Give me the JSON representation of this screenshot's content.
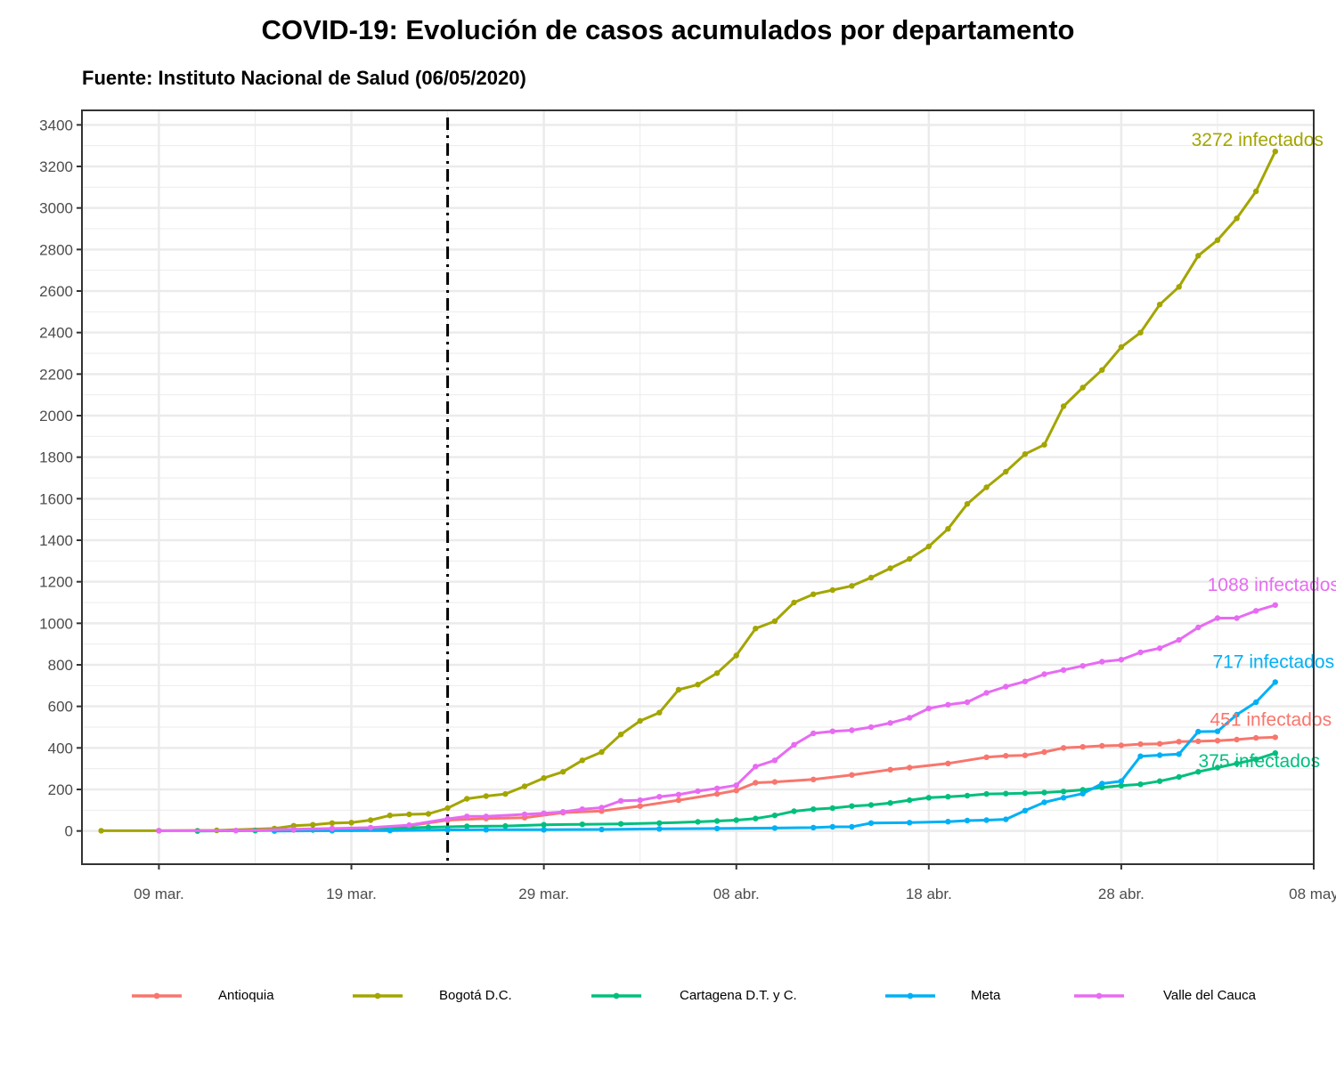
{
  "chart_data": {
    "type": "line",
    "title": "COVID-19: Evolución de casos acumulados por departamento",
    "subtitle": "Fuente: Instituto Nacional de Salud (06/05/2020)",
    "xlabel": "",
    "ylabel": "",
    "x_ticks": [
      {
        "date": "2020-03-09",
        "label": "09 mar."
      },
      {
        "date": "2020-03-19",
        "label": "19 mar."
      },
      {
        "date": "2020-03-29",
        "label": "29 mar."
      },
      {
        "date": "2020-04-08",
        "label": "08 abr."
      },
      {
        "date": "2020-04-18",
        "label": "18 abr."
      },
      {
        "date": "2020-04-28",
        "label": "28 abr."
      },
      {
        "date": "2020-05-08",
        "label": "08 may"
      }
    ],
    "xlim": [
      "2020-03-05",
      "2020-05-08"
    ],
    "ylim": [
      -160,
      3470
    ],
    "y_ticks": [
      0,
      200,
      400,
      600,
      800,
      1000,
      1200,
      1400,
      1600,
      1800,
      2000,
      2200,
      2400,
      2600,
      2800,
      3000,
      3200,
      3400
    ],
    "grid": true,
    "vline": {
      "date": "2020-03-24",
      "style": "dash-dot"
    },
    "legend_position": "bottom",
    "series": [
      {
        "name": "Antioquia",
        "color": "#F8766D",
        "end_label": "451 infectados",
        "points": [
          [
            "2020-03-11",
            1
          ],
          [
            "2020-03-14",
            3
          ],
          [
            "2020-03-16",
            5
          ],
          [
            "2020-03-18",
            8
          ],
          [
            "2020-03-20",
            14
          ],
          [
            "2020-03-22",
            25
          ],
          [
            "2020-03-24",
            52
          ],
          [
            "2020-03-26",
            60
          ],
          [
            "2020-03-28",
            64
          ],
          [
            "2020-03-30",
            88
          ],
          [
            "2020-04-01",
            96
          ],
          [
            "2020-04-03",
            120
          ],
          [
            "2020-04-05",
            148
          ],
          [
            "2020-04-07",
            178
          ],
          [
            "2020-04-08",
            195
          ],
          [
            "2020-04-09",
            232
          ],
          [
            "2020-04-10",
            236
          ],
          [
            "2020-04-12",
            248
          ],
          [
            "2020-04-14",
            270
          ],
          [
            "2020-04-16",
            295
          ],
          [
            "2020-04-17",
            305
          ],
          [
            "2020-04-19",
            325
          ],
          [
            "2020-04-21",
            355
          ],
          [
            "2020-04-22",
            362
          ],
          [
            "2020-04-23",
            364
          ],
          [
            "2020-04-24",
            380
          ],
          [
            "2020-04-25",
            400
          ],
          [
            "2020-04-26",
            405
          ],
          [
            "2020-04-27",
            410
          ],
          [
            "2020-04-28",
            412
          ],
          [
            "2020-04-29",
            418
          ],
          [
            "2020-04-30",
            420
          ],
          [
            "2020-05-01",
            430
          ],
          [
            "2020-05-02",
            432
          ],
          [
            "2020-05-03",
            435
          ],
          [
            "2020-05-04",
            440
          ],
          [
            "2020-05-05",
            448
          ],
          [
            "2020-05-06",
            451
          ]
        ]
      },
      {
        "name": "Bogotá D.C.",
        "color": "#A3A500",
        "end_label": "3272 infectados",
        "points": [
          [
            "2020-03-06",
            1
          ],
          [
            "2020-03-09",
            1
          ],
          [
            "2020-03-12",
            3
          ],
          [
            "2020-03-15",
            12
          ],
          [
            "2020-03-16",
            25
          ],
          [
            "2020-03-17",
            30
          ],
          [
            "2020-03-18",
            38
          ],
          [
            "2020-03-19",
            40
          ],
          [
            "2020-03-20",
            52
          ],
          [
            "2020-03-21",
            75
          ],
          [
            "2020-03-22",
            80
          ],
          [
            "2020-03-23",
            82
          ],
          [
            "2020-03-24",
            110
          ],
          [
            "2020-03-25",
            155
          ],
          [
            "2020-03-26",
            168
          ],
          [
            "2020-03-27",
            178
          ],
          [
            "2020-03-28",
            215
          ],
          [
            "2020-03-29",
            255
          ],
          [
            "2020-03-30",
            285
          ],
          [
            "2020-03-31",
            340
          ],
          [
            "2020-04-01",
            380
          ],
          [
            "2020-04-02",
            465
          ],
          [
            "2020-04-03",
            530
          ],
          [
            "2020-04-04",
            570
          ],
          [
            "2020-04-05",
            680
          ],
          [
            "2020-04-06",
            705
          ],
          [
            "2020-04-07",
            760
          ],
          [
            "2020-04-08",
            845
          ],
          [
            "2020-04-09",
            975
          ],
          [
            "2020-04-10",
            1010
          ],
          [
            "2020-04-11",
            1100
          ],
          [
            "2020-04-12",
            1140
          ],
          [
            "2020-04-13",
            1160
          ],
          [
            "2020-04-14",
            1180
          ],
          [
            "2020-04-15",
            1220
          ],
          [
            "2020-04-16",
            1265
          ],
          [
            "2020-04-17",
            1310
          ],
          [
            "2020-04-18",
            1370
          ],
          [
            "2020-04-19",
            1455
          ],
          [
            "2020-04-20",
            1575
          ],
          [
            "2020-04-21",
            1655
          ],
          [
            "2020-04-22",
            1730
          ],
          [
            "2020-04-23",
            1815
          ],
          [
            "2020-04-24",
            1860
          ],
          [
            "2020-04-25",
            2045
          ],
          [
            "2020-04-26",
            2135
          ],
          [
            "2020-04-27",
            2220
          ],
          [
            "2020-04-28",
            2330
          ],
          [
            "2020-04-29",
            2400
          ],
          [
            "2020-04-30",
            2535
          ],
          [
            "2020-05-01",
            2620
          ],
          [
            "2020-05-02",
            2770
          ],
          [
            "2020-05-03",
            2845
          ],
          [
            "2020-05-04",
            2950
          ],
          [
            "2020-05-05",
            3080
          ],
          [
            "2020-05-06",
            3272
          ]
        ]
      },
      {
        "name": "Cartagena D.T. y C.",
        "color": "#00BF7D",
        "end_label": "375 infectados",
        "points": [
          [
            "2020-03-11",
            0
          ],
          [
            "2020-03-14",
            2
          ],
          [
            "2020-03-17",
            5
          ],
          [
            "2020-03-19",
            8
          ],
          [
            "2020-03-21",
            12
          ],
          [
            "2020-03-23",
            18
          ],
          [
            "2020-03-25",
            22
          ],
          [
            "2020-03-27",
            24
          ],
          [
            "2020-03-29",
            30
          ],
          [
            "2020-03-31",
            32
          ],
          [
            "2020-04-02",
            34
          ],
          [
            "2020-04-04",
            38
          ],
          [
            "2020-04-06",
            44
          ],
          [
            "2020-04-07",
            48
          ],
          [
            "2020-04-08",
            52
          ],
          [
            "2020-04-09",
            60
          ],
          [
            "2020-04-10",
            75
          ],
          [
            "2020-04-11",
            95
          ],
          [
            "2020-04-12",
            105
          ],
          [
            "2020-04-13",
            110
          ],
          [
            "2020-04-14",
            120
          ],
          [
            "2020-04-15",
            125
          ],
          [
            "2020-04-16",
            135
          ],
          [
            "2020-04-17",
            148
          ],
          [
            "2020-04-18",
            160
          ],
          [
            "2020-04-19",
            165
          ],
          [
            "2020-04-20",
            170
          ],
          [
            "2020-04-21",
            178
          ],
          [
            "2020-04-22",
            180
          ],
          [
            "2020-04-23",
            182
          ],
          [
            "2020-04-24",
            185
          ],
          [
            "2020-04-25",
            190
          ],
          [
            "2020-04-26",
            198
          ],
          [
            "2020-04-27",
            210
          ],
          [
            "2020-04-28",
            218
          ],
          [
            "2020-04-29",
            225
          ],
          [
            "2020-04-30",
            240
          ],
          [
            "2020-05-01",
            260
          ],
          [
            "2020-05-02",
            285
          ],
          [
            "2020-05-03",
            305
          ],
          [
            "2020-05-04",
            325
          ],
          [
            "2020-05-05",
            345
          ],
          [
            "2020-05-06",
            375
          ]
        ]
      },
      {
        "name": "Meta",
        "color": "#00B0F6",
        "end_label": "717 infectados",
        "points": [
          [
            "2020-03-15",
            0
          ],
          [
            "2020-03-18",
            1
          ],
          [
            "2020-03-21",
            2
          ],
          [
            "2020-03-24",
            5
          ],
          [
            "2020-03-26",
            6
          ],
          [
            "2020-03-29",
            6
          ],
          [
            "2020-04-01",
            7
          ],
          [
            "2020-04-04",
            10
          ],
          [
            "2020-04-07",
            12
          ],
          [
            "2020-04-10",
            14
          ],
          [
            "2020-04-12",
            16
          ],
          [
            "2020-04-13",
            20
          ],
          [
            "2020-04-14",
            20
          ],
          [
            "2020-04-15",
            38
          ],
          [
            "2020-04-17",
            40
          ],
          [
            "2020-04-19",
            45
          ],
          [
            "2020-04-20",
            50
          ],
          [
            "2020-04-21",
            52
          ],
          [
            "2020-04-22",
            56
          ],
          [
            "2020-04-23",
            98
          ],
          [
            "2020-04-24",
            138
          ],
          [
            "2020-04-25",
            160
          ],
          [
            "2020-04-26",
            180
          ],
          [
            "2020-04-27",
            228
          ],
          [
            "2020-04-28",
            240
          ],
          [
            "2020-04-29",
            360
          ],
          [
            "2020-04-30",
            365
          ],
          [
            "2020-05-01",
            370
          ],
          [
            "2020-05-02",
            478
          ],
          [
            "2020-05-03",
            480
          ],
          [
            "2020-05-04",
            560
          ],
          [
            "2020-05-05",
            620
          ],
          [
            "2020-05-06",
            717
          ]
        ]
      },
      {
        "name": "Valle del Cauca",
        "color": "#E76BF3",
        "end_label": "1088 infectados",
        "points": [
          [
            "2020-03-09",
            1
          ],
          [
            "2020-03-13",
            2
          ],
          [
            "2020-03-16",
            8
          ],
          [
            "2020-03-18",
            12
          ],
          [
            "2020-03-20",
            16
          ],
          [
            "2020-03-22",
            28
          ],
          [
            "2020-03-24",
            58
          ],
          [
            "2020-03-25",
            70
          ],
          [
            "2020-03-26",
            70
          ],
          [
            "2020-03-28",
            80
          ],
          [
            "2020-03-29",
            85
          ],
          [
            "2020-03-30",
            92
          ],
          [
            "2020-03-31",
            105
          ],
          [
            "2020-04-01",
            112
          ],
          [
            "2020-04-02",
            145
          ],
          [
            "2020-04-03",
            148
          ],
          [
            "2020-04-04",
            165
          ],
          [
            "2020-04-05",
            175
          ],
          [
            "2020-04-06",
            192
          ],
          [
            "2020-04-07",
            205
          ],
          [
            "2020-04-08",
            220
          ],
          [
            "2020-04-09",
            310
          ],
          [
            "2020-04-10",
            340
          ],
          [
            "2020-04-11",
            415
          ],
          [
            "2020-04-12",
            470
          ],
          [
            "2020-04-13",
            480
          ],
          [
            "2020-04-14",
            485
          ],
          [
            "2020-04-15",
            500
          ],
          [
            "2020-04-16",
            520
          ],
          [
            "2020-04-17",
            545
          ],
          [
            "2020-04-18",
            590
          ],
          [
            "2020-04-19",
            608
          ],
          [
            "2020-04-20",
            620
          ],
          [
            "2020-04-21",
            665
          ],
          [
            "2020-04-22",
            695
          ],
          [
            "2020-04-23",
            720
          ],
          [
            "2020-04-24",
            755
          ],
          [
            "2020-04-25",
            775
          ],
          [
            "2020-04-26",
            795
          ],
          [
            "2020-04-27",
            815
          ],
          [
            "2020-04-28",
            825
          ],
          [
            "2020-04-29",
            860
          ],
          [
            "2020-04-30",
            880
          ],
          [
            "2020-05-01",
            920
          ],
          [
            "2020-05-02",
            980
          ],
          [
            "2020-05-03",
            1025
          ],
          [
            "2020-05-04",
            1025
          ],
          [
            "2020-05-05",
            1060
          ],
          [
            "2020-05-06",
            1088
          ]
        ]
      }
    ]
  }
}
